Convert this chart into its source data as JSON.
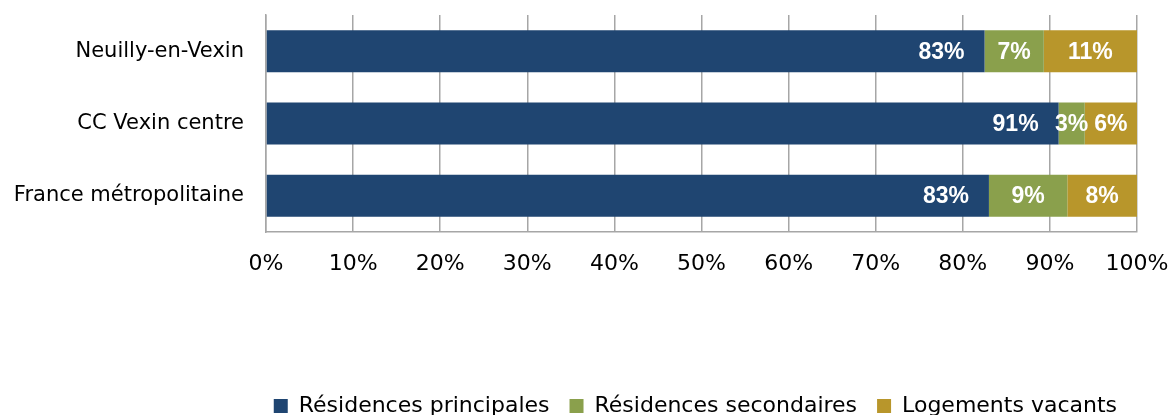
{
  "chart_data": {
    "type": "bar",
    "orientation": "horizontal",
    "stacked": true,
    "categories": [
      "Neuilly-en-Vexin",
      "CC Vexin centre",
      "France métropolitaine"
    ],
    "series": [
      {
        "name": "Résidences principales",
        "color": "#1f4571",
        "values": [
          82.5,
          91,
          83
        ],
        "value_labels": [
          "83%",
          "91%",
          "83%"
        ]
      },
      {
        "name": "Résidences secondaires",
        "color": "#8aa04c",
        "values": [
          6.8,
          3,
          9
        ],
        "value_labels": [
          "7%",
          "3%",
          "9%"
        ]
      },
      {
        "name": "Logements vacants",
        "color": "#b8962b",
        "values": [
          10.7,
          6,
          8
        ],
        "value_labels": [
          "11%",
          "6%",
          "8%"
        ]
      }
    ],
    "xlim": [
      0,
      100
    ],
    "xticks": [
      {
        "value": 0,
        "label": "0%"
      },
      {
        "value": 10,
        "label": "10%"
      },
      {
        "value": 20,
        "label": "20%"
      },
      {
        "value": 30,
        "label": "30%"
      },
      {
        "value": 40,
        "label": "40%"
      },
      {
        "value": 50,
        "label": "50%"
      },
      {
        "value": 60,
        "label": "60%"
      },
      {
        "value": 70,
        "label": "70%"
      },
      {
        "value": 80,
        "label": "80%"
      },
      {
        "value": 90,
        "label": "90%"
      },
      {
        "value": 100,
        "label": "100%"
      }
    ],
    "grid": "x",
    "legend": "bottom"
  }
}
